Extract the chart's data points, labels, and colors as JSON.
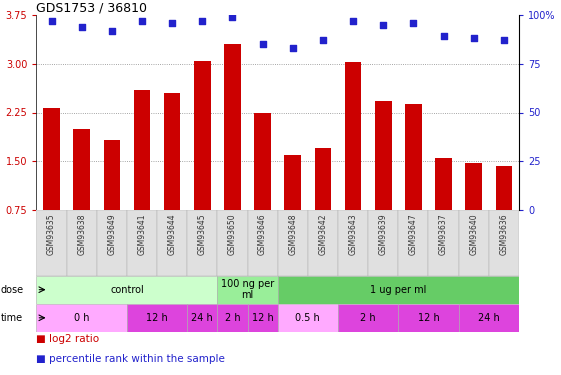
{
  "title": "GDS1753 / 36810",
  "samples": [
    "GSM93635",
    "GSM93638",
    "GSM93649",
    "GSM93641",
    "GSM93644",
    "GSM93645",
    "GSM93650",
    "GSM93646",
    "GSM93648",
    "GSM93642",
    "GSM93643",
    "GSM93639",
    "GSM93647",
    "GSM93637",
    "GSM93640",
    "GSM93636"
  ],
  "log2_ratio": [
    2.32,
    2.0,
    1.82,
    2.6,
    2.55,
    3.05,
    3.3,
    2.25,
    1.6,
    1.7,
    3.02,
    2.42,
    2.38,
    1.55,
    1.47,
    1.43
  ],
  "percentile": [
    97,
    94,
    92,
    97,
    96,
    97,
    99,
    85,
    83,
    87,
    97,
    95,
    96,
    89,
    88,
    87
  ],
  "ylim": [
    0.75,
    3.75
  ],
  "yticks_left": [
    0.75,
    1.5,
    2.25,
    3.0,
    3.75
  ],
  "yticks_right_vals": [
    0,
    25,
    50,
    75,
    100
  ],
  "yticks_right_labels": [
    "0",
    "25",
    "50",
    "75",
    "100%"
  ],
  "bar_color": "#cc0000",
  "dot_color": "#2222cc",
  "bg_color": "#ffffff",
  "grid_color": "#888888",
  "tick_label_color_left": "#cc0000",
  "tick_label_color_right": "#2222cc",
  "dose_groups": [
    {
      "label": "control",
      "start": 0,
      "end": 6,
      "color": "#ccffcc"
    },
    {
      "label": "100 ng per\nml",
      "start": 6,
      "end": 8,
      "color": "#99ee99"
    },
    {
      "label": "1 ug per ml",
      "start": 8,
      "end": 16,
      "color": "#66cc66"
    }
  ],
  "time_groups": [
    {
      "label": "0 h",
      "start": 0,
      "end": 3,
      "color": "#ffaaff"
    },
    {
      "label": "12 h",
      "start": 3,
      "end": 5,
      "color": "#dd44dd"
    },
    {
      "label": "24 h",
      "start": 5,
      "end": 6,
      "color": "#dd44dd"
    },
    {
      "label": "2 h",
      "start": 6,
      "end": 7,
      "color": "#dd44dd"
    },
    {
      "label": "12 h",
      "start": 7,
      "end": 8,
      "color": "#dd44dd"
    },
    {
      "label": "0.5 h",
      "start": 8,
      "end": 10,
      "color": "#ffaaff"
    },
    {
      "label": "2 h",
      "start": 10,
      "end": 12,
      "color": "#dd44dd"
    },
    {
      "label": "12 h",
      "start": 12,
      "end": 14,
      "color": "#dd44dd"
    },
    {
      "label": "24 h",
      "start": 14,
      "end": 16,
      "color": "#dd44dd"
    }
  ]
}
